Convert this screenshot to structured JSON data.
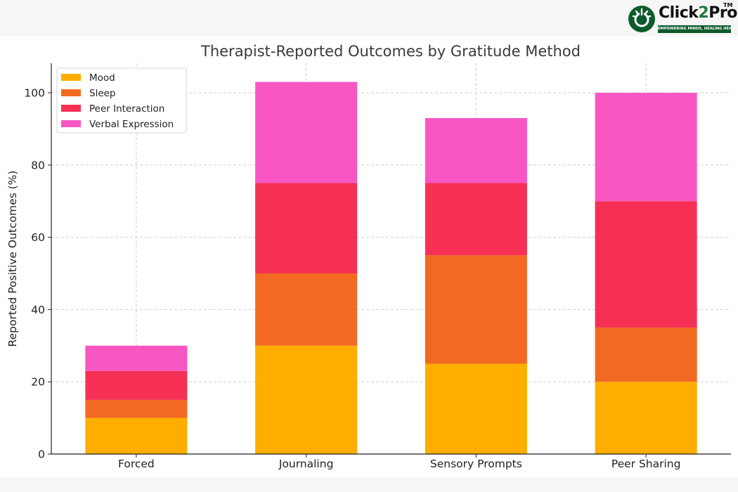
{
  "logo": {
    "name_part1": "Click",
    "name_part2": "2",
    "name_part3": "Pro",
    "trademark": "TM",
    "tagline": "EMPOWERING MINDS, HEALING HEARTS",
    "accent_color": "#1f7a3d",
    "mark_color": "#0e5a2c"
  },
  "chart_data": {
    "type": "bar",
    "stacked": true,
    "title": "Therapist-Reported Outcomes by Gratitude Method",
    "xlabel": "",
    "ylabel": "Reported Positive Outcomes (%)",
    "ylim": [
      0,
      108
    ],
    "yticks": [
      0,
      20,
      40,
      60,
      80,
      100
    ],
    "grid": true,
    "legend_position": "top-left",
    "categories": [
      "Forced",
      "Journaling",
      "Sensory Prompts",
      "Peer Sharing"
    ],
    "series": [
      {
        "name": "Mood",
        "color": "#ffae00",
        "values": [
          10,
          30,
          25,
          20
        ]
      },
      {
        "name": "Sleep",
        "color": "#f26a21",
        "values": [
          5,
          20,
          30,
          15
        ]
      },
      {
        "name": "Peer Interaction",
        "color": "#f53054",
        "values": [
          8,
          25,
          20,
          35
        ]
      },
      {
        "name": "Verbal Expression",
        "color": "#f857c3",
        "values": [
          7,
          28,
          18,
          30
        ]
      }
    ]
  }
}
